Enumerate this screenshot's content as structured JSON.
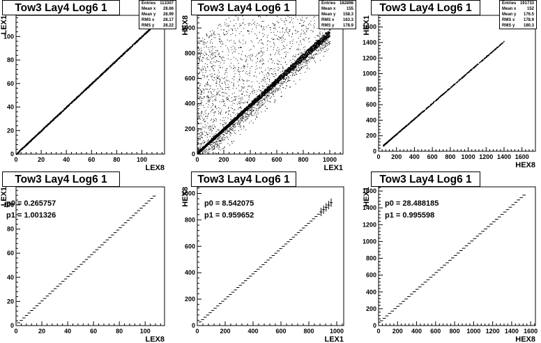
{
  "panels": [
    {
      "title": "Tow3 Lay4 Log6 1",
      "stats": [
        {
          "label": "Entries",
          "value": "113307"
        },
        {
          "label": "Mean x",
          "value": "28.66"
        },
        {
          "label": "Mean y",
          "value": "28.99"
        },
        {
          "label": "RMS x",
          "value": "28.17"
        },
        {
          "label": "RMS y",
          "value": "28.22"
        }
      ],
      "fit": []
    },
    {
      "title": "Tow3 Lay4 Log6 1",
      "stats": [
        {
          "label": "Entries",
          "value": "182898"
        },
        {
          "label": "Mean x",
          "value": "155"
        },
        {
          "label": "Mean y",
          "value": "158.3"
        },
        {
          "label": "RMS x",
          "value": "163.3"
        },
        {
          "label": "RMS y",
          "value": "178.9"
        }
      ],
      "fit": []
    },
    {
      "title": "Tow3 Lay4 Log6 1",
      "stats": [
        {
          "label": "Entries",
          "value": "191733"
        },
        {
          "label": "Mean x",
          "value": "152"
        },
        {
          "label": "Mean y",
          "value": "176.5"
        },
        {
          "label": "RMS x",
          "value": "178.9"
        },
        {
          "label": "RMS y",
          "value": "180.3"
        }
      ],
      "fit": []
    },
    {
      "title": "Tow3 Lay4 Log6 1",
      "stats": [],
      "fit": [
        "p0 = 0.265757",
        "p1 = 1.001326"
      ]
    },
    {
      "title": "Tow3 Lay4 Log6 1",
      "stats": [],
      "fit": [
        "p0 = 8.542075",
        "p1 = 0.959652"
      ]
    },
    {
      "title": "Tow3 Lay4 Log6 1",
      "stats": [],
      "fit": [
        "p0 = 28.488185",
        "p1 = 0.995598"
      ]
    }
  ],
  "chart_data": [
    {
      "type": "scatter",
      "title": "Tow3 Lay4 Log6 1",
      "xlabel": "LEX8",
      "ylabel": "LEX1",
      "xlim": [
        0,
        118
      ],
      "ylim": [
        0,
        118
      ],
      "xticks": [
        0,
        20,
        40,
        60,
        80,
        100
      ],
      "yticks": [
        0,
        20,
        40,
        60,
        80,
        100
      ],
      "grid": false,
      "series": [
        {
          "x": [
            0,
            20,
            40,
            60,
            80,
            100,
            107
          ],
          "y": [
            0.3,
            20.3,
            40.3,
            60.3,
            80.4,
            100.4,
            107.4
          ]
        }
      ]
    },
    {
      "type": "scatter",
      "title": "Tow3 Lay4 Log6 1",
      "xlabel": "LEX1",
      "ylabel": "HEX8",
      "xlim": [
        0,
        1100
      ],
      "ylim": [
        0,
        1100
      ],
      "xticks": [
        0,
        200,
        400,
        600,
        800,
        1000
      ],
      "yticks": [
        0,
        200,
        400,
        600,
        800,
        1000
      ],
      "grid": false,
      "series": [
        {
          "x": [
            0,
            100,
            200,
            300,
            400,
            500,
            600,
            700,
            800,
            900,
            1000
          ],
          "y": [
            10,
            105,
            200,
            296,
            392,
            488,
            584,
            680,
            776,
            872,
            968
          ]
        }
      ]
    },
    {
      "type": "scatter",
      "title": "Tow3 Lay4 Log6 1",
      "xlabel": "HEX8",
      "ylabel": "HEX1",
      "xlim": [
        0,
        1750
      ],
      "ylim": [
        0,
        1750
      ],
      "xticks": [
        0,
        200,
        400,
        600,
        800,
        1000,
        1200,
        1400,
        1600
      ],
      "yticks": [
        0,
        200,
        400,
        600,
        800,
        1000,
        1200,
        1400,
        1600
      ],
      "grid": false,
      "series": [
        {
          "x": [
            50,
            200,
            400,
            600,
            800,
            1000,
            1200,
            1400
          ],
          "y": [
            78,
            227,
            426,
            625,
            825,
            1024,
            1223,
            1422
          ]
        }
      ]
    },
    {
      "type": "line",
      "title": "Tow3 Lay4 Log6 1",
      "xlabel": "LEX8",
      "ylabel": "LEX1",
      "xlim": [
        0,
        115
      ],
      "ylim": [
        0,
        115
      ],
      "xticks": [
        0,
        20,
        40,
        60,
        80,
        100
      ],
      "yticks": [
        0,
        20,
        40,
        60,
        80,
        100
      ],
      "grid": false,
      "series": [
        {
          "x": [
            2,
            20,
            40,
            60,
            80,
            100,
            107
          ],
          "y": [
            2.3,
            20.3,
            40.3,
            60.3,
            80.4,
            100.4,
            107.4
          ]
        }
      ]
    },
    {
      "type": "line",
      "title": "Tow3 Lay4 Log6 1",
      "xlabel": "LEX1",
      "ylabel": "HEX8",
      "xlim": [
        0,
        1050
      ],
      "ylim": [
        0,
        1050
      ],
      "xticks": [
        0,
        200,
        400,
        600,
        800,
        1000
      ],
      "yticks": [
        0,
        200,
        400,
        600,
        800,
        1000
      ],
      "grid": false,
      "series": [
        {
          "x": [
            20,
            200,
            400,
            600,
            800,
            900,
            960
          ],
          "y": [
            28,
            200,
            392,
            584,
            776,
            872,
            930
          ]
        }
      ]
    },
    {
      "type": "line",
      "title": "Tow3 Lay4 Log6 1",
      "xlabel": "HEX8",
      "ylabel": "HEX1",
      "xlim": [
        0,
        1650
      ],
      "ylim": [
        0,
        1650
      ],
      "xticks": [
        0,
        200,
        400,
        600,
        800,
        1000,
        1200,
        1400,
        1600
      ],
      "yticks": [
        0,
        200,
        400,
        600,
        800,
        1000,
        1200,
        1400,
        1600
      ],
      "grid": false,
      "series": [
        {
          "x": [
            30,
            200,
            400,
            600,
            800,
            1000,
            1200,
            1400,
            1530
          ],
          "y": [
            58,
            227,
            426,
            625,
            825,
            1024,
            1223,
            1422,
            1551
          ]
        }
      ]
    }
  ]
}
